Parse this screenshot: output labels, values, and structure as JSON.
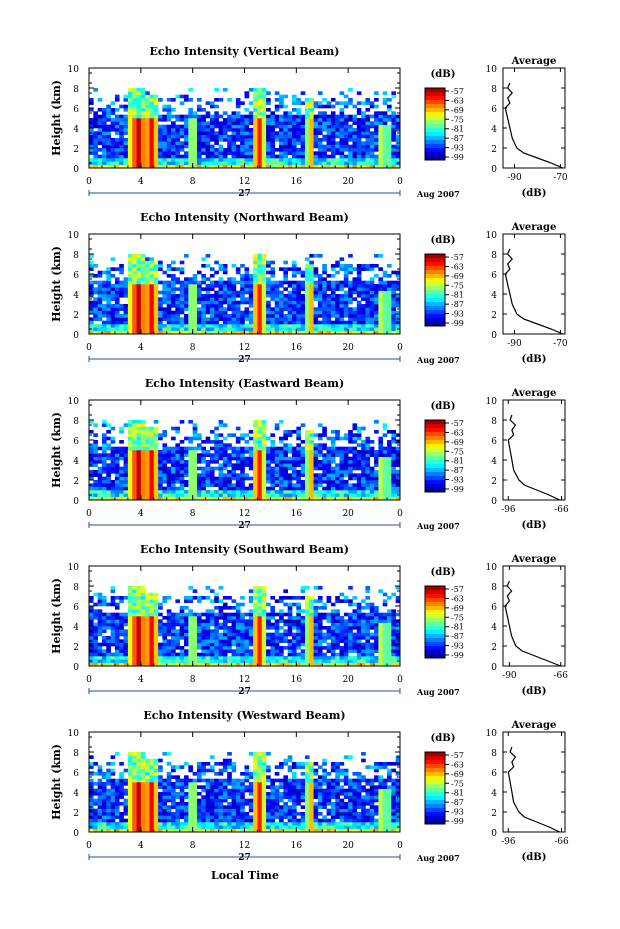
{
  "shared": {
    "ylabel": "Height (km)",
    "y_ticks": [
      "0",
      "2",
      "4",
      "6",
      "8",
      "10"
    ],
    "x_ticks": [
      "0",
      "4",
      "8",
      "12",
      "16",
      "20",
      "0"
    ],
    "day_label": "27",
    "month_label": "Aug 2007",
    "colorbar_unit": "(dB)",
    "colorbar_ticks": [
      "-57",
      "-63",
      "-69",
      "-75",
      "-81",
      "-87",
      "-93",
      "-99"
    ],
    "average_title": "Average",
    "average_xlabel": "(dB)",
    "xlabel": "Local Time"
  },
  "chart_data": [
    {
      "type": "heatmap",
      "title": "Echo Intensity (Vertical Beam)",
      "avg_xticks": [
        "-90",
        "-70"
      ],
      "avg_xrange": [
        -95,
        -68
      ],
      "avg_profile": {
        "height": [
          0,
          0.5,
          1,
          1.5,
          2,
          3,
          4,
          5,
          6,
          6.5,
          7,
          7.5,
          8,
          8.5
        ],
        "db": [
          -69,
          -74,
          -80,
          -86,
          -89,
          -91,
          -92,
          -93,
          -94,
          -92,
          -93,
          -91,
          -93,
          -92
        ]
      }
    },
    {
      "type": "heatmap",
      "title": "Echo Intensity (Northward Beam)",
      "avg_xticks": [
        "-90",
        "-70"
      ],
      "avg_xrange": [
        -95,
        -68
      ],
      "avg_profile": {
        "height": [
          0,
          0.5,
          1,
          1.5,
          2,
          3,
          4,
          5,
          6,
          6.5,
          7,
          7.5,
          8,
          8.5
        ],
        "db": [
          -69,
          -74,
          -80,
          -86,
          -89,
          -91,
          -92,
          -93,
          -94,
          -92,
          -93,
          -91,
          -93,
          -92
        ]
      }
    },
    {
      "type": "heatmap",
      "title": "Echo Intensity (Eastward Beam)",
      "avg_xticks": [
        "-96",
        "-66"
      ],
      "avg_xrange": [
        -99,
        -64
      ],
      "avg_profile": {
        "height": [
          0,
          0.5,
          1,
          1.5,
          2,
          3,
          4,
          5,
          6,
          6.5,
          7,
          7.5,
          8,
          8.5
        ],
        "db": [
          -67,
          -73,
          -80,
          -87,
          -90,
          -93,
          -94,
          -95,
          -96,
          -93,
          -94,
          -92,
          -95,
          -94
        ]
      }
    },
    {
      "type": "heatmap",
      "title": "Echo Intensity (Southward Beam)",
      "avg_xticks": [
        "-90",
        "-66"
      ],
      "avg_xrange": [
        -93,
        -64
      ],
      "avg_profile": {
        "height": [
          0,
          0.5,
          1,
          1.5,
          2,
          3,
          4,
          5,
          6,
          6.5,
          7,
          7.5,
          8,
          8.5
        ],
        "db": [
          -66,
          -72,
          -78,
          -84,
          -87,
          -89,
          -90,
          -91,
          -92,
          -90,
          -91,
          -89,
          -91,
          -90
        ]
      }
    },
    {
      "type": "heatmap",
      "title": "Echo Intensity (Westward Beam)",
      "avg_xticks": [
        "-96",
        "-66"
      ],
      "avg_xrange": [
        -99,
        -64
      ],
      "avg_profile": {
        "height": [
          0,
          0.5,
          1,
          1.5,
          2,
          3,
          4,
          5,
          6,
          6.5,
          7,
          7.5,
          8,
          8.5
        ],
        "db": [
          -67,
          -73,
          -80,
          -87,
          -90,
          -93,
          -94,
          -95,
          -96,
          -93,
          -94,
          -92,
          -95,
          -94
        ]
      }
    }
  ]
}
